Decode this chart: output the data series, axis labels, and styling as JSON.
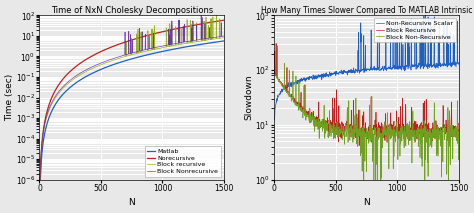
{
  "left_title": "Time of NxN Cholesky Decompositions",
  "right_title": "How Many Times Slower Compared To MATLAB Intrinsic",
  "left_xlabel": "N",
  "right_xlabel": "N",
  "left_ylabel": "Time (sec)",
  "right_ylabel": "Slowdown",
  "left_legend": [
    "Matlab",
    "Norecursive",
    "Block recursive",
    "Block Nonrecursive"
  ],
  "right_legend": [
    "Non-Recursive Scalar",
    "Block Recursive",
    "Block Non-Recursive"
  ],
  "left_colors": [
    "#2060c0",
    "#c02020",
    "#8aaa00",
    "#6020a0"
  ],
  "right_colors": [
    "#2060c0",
    "#c02020",
    "#70a020"
  ],
  "xlim": [
    0,
    1500
  ],
  "left_ylim": [
    1e-06,
    100.0
  ],
  "right_ylim": [
    1.0,
    1000.0
  ],
  "bg_color": "#e8e8e8",
  "grid_color": "white",
  "N_max": 1500,
  "N_points": 800
}
